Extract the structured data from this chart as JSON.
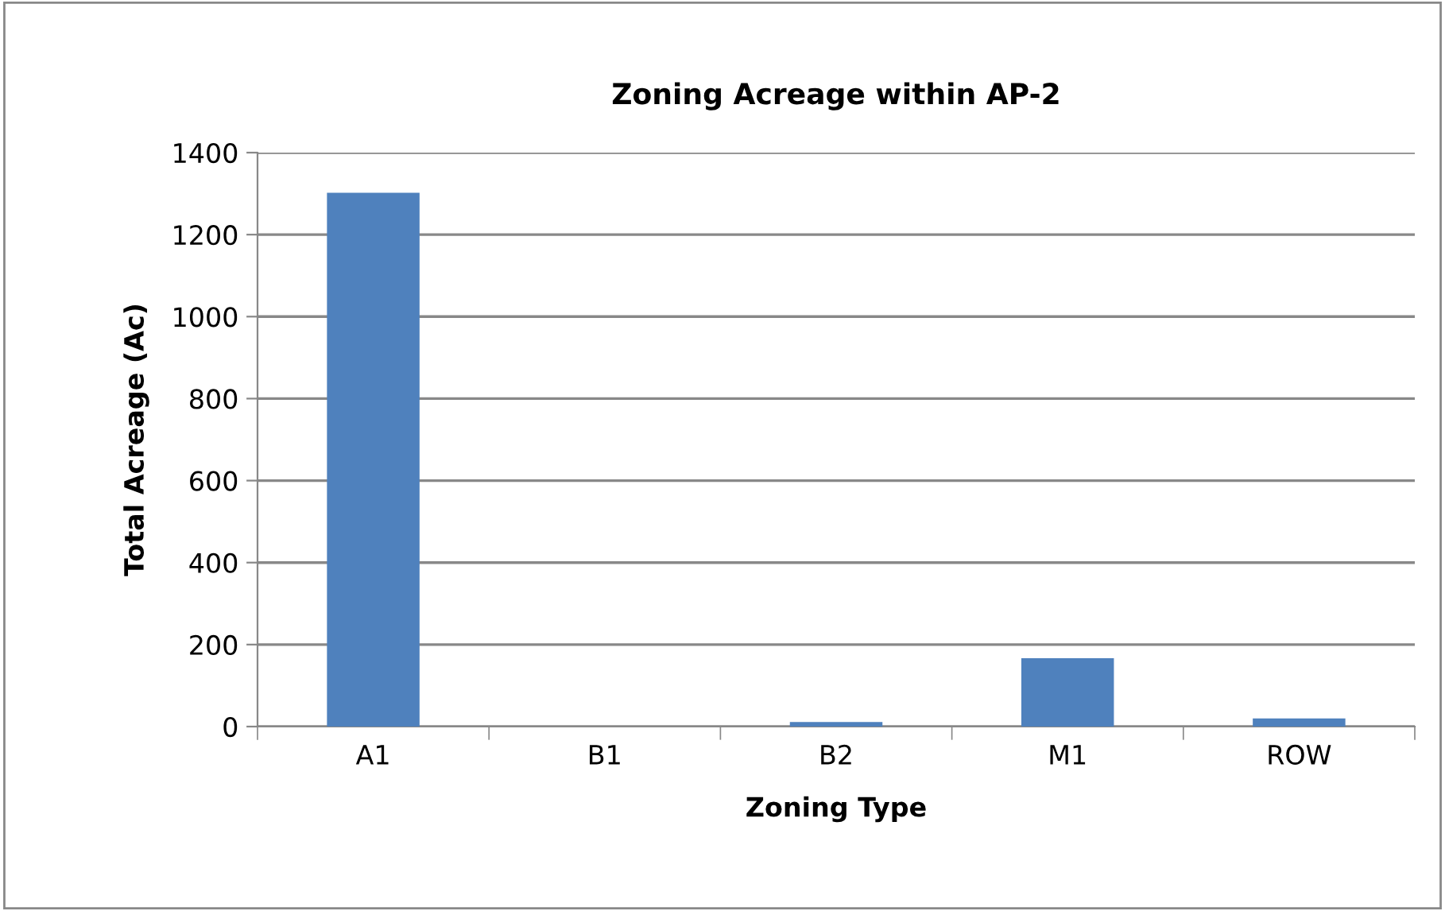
{
  "chart_data": {
    "type": "bar",
    "title": "Zoning Acreage within AP-2",
    "xlabel": "Zoning Type",
    "ylabel": "Total Acreage (Ac)",
    "categories": [
      "A1",
      "B1",
      "B2",
      "M1",
      "ROW"
    ],
    "values": [
      1302,
      0,
      11,
      167,
      20
    ],
    "color": "#4f81bd",
    "ylim": [
      0,
      1400
    ],
    "yticks": [
      0,
      200,
      400,
      600,
      800,
      1000,
      1200,
      1400
    ],
    "grid": "y",
    "legend": false
  }
}
